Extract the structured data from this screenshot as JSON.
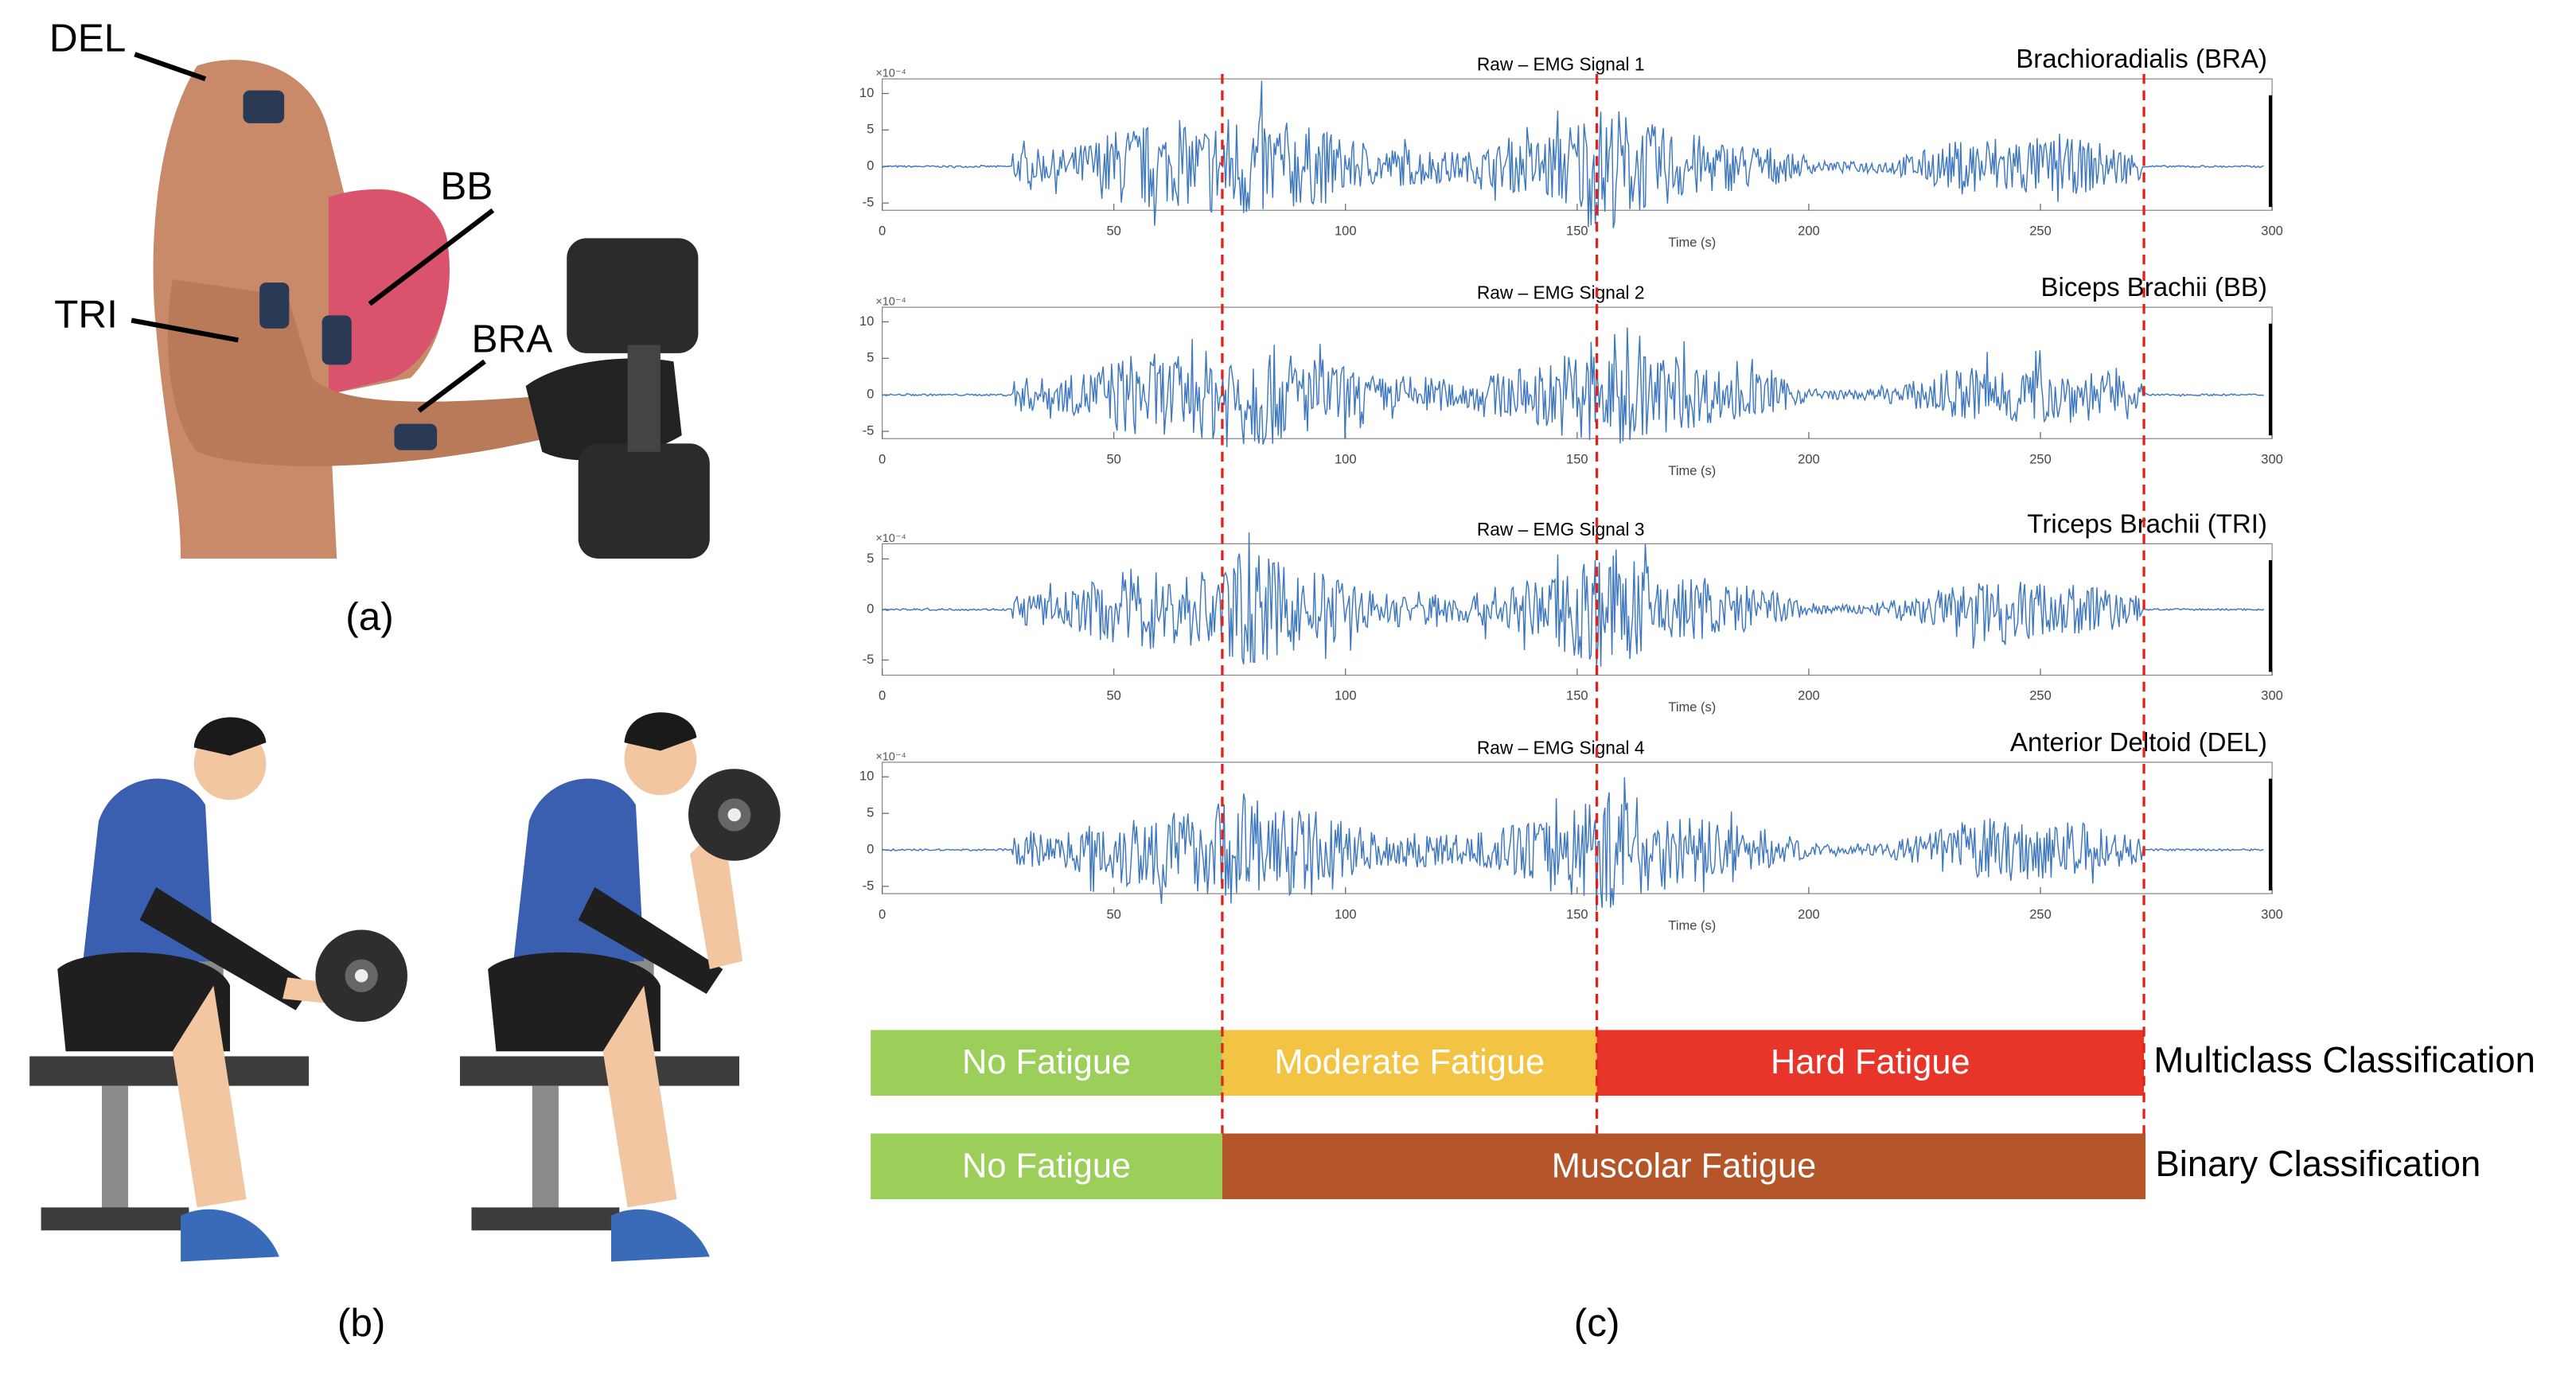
{
  "panel_a": {
    "labels": [
      "DEL",
      "BB",
      "TRI",
      "BRA"
    ],
    "caption": "(a)"
  },
  "panel_b": {
    "caption": "(b)"
  },
  "panel_c": {
    "caption": "(c)",
    "xlabel": "Time (s)",
    "xlim": [
      0,
      300
    ],
    "xticks": [
      0,
      50,
      100,
      150,
      200,
      250,
      300
    ],
    "signals": [
      {
        "title": "Raw – EMG Signal 1",
        "muscle": "Brachioradialis (BRA)",
        "exponent": "×10⁻⁴",
        "ylim": [
          -6,
          12
        ],
        "yticks": [
          10,
          5,
          0,
          -5
        ]
      },
      {
        "title": "Raw – EMG Signal 2",
        "muscle": "Biceps Brachii (BB)",
        "exponent": "×10⁻⁴",
        "ylim": [
          -6,
          12
        ],
        "yticks": [
          10,
          5,
          0,
          -5
        ]
      },
      {
        "title": "Raw – EMG Signal 3",
        "muscle": "Triceps Brachii (TRI)",
        "exponent": "×10⁻⁴",
        "ylim": [
          -6.5,
          6.5
        ],
        "yticks": [
          5,
          0,
          -5
        ]
      },
      {
        "title": "Raw – EMG Signal 4",
        "muscle": "Anterior Deltoid (DEL)",
        "exponent": "×10⁻⁴",
        "ylim": [
          -6,
          12
        ],
        "yticks": [
          10,
          5,
          0,
          -5
        ]
      }
    ],
    "classifications": [
      {
        "name": "Multiclass Classification",
        "segments": [
          {
            "label": "No Fatigue",
            "color": "#9bcf5a"
          },
          {
            "label": "Moderate Fatigue",
            "color": "#f3c444"
          },
          {
            "label": "Hard Fatigue",
            "color": "#e8352a"
          }
        ]
      },
      {
        "name": "Binary Classification",
        "segments": [
          {
            "label": "No Fatigue",
            "color": "#9bcf5a"
          },
          {
            "label": "Muscolar Fatigue",
            "color": "#b5562a"
          }
        ]
      }
    ]
  }
}
